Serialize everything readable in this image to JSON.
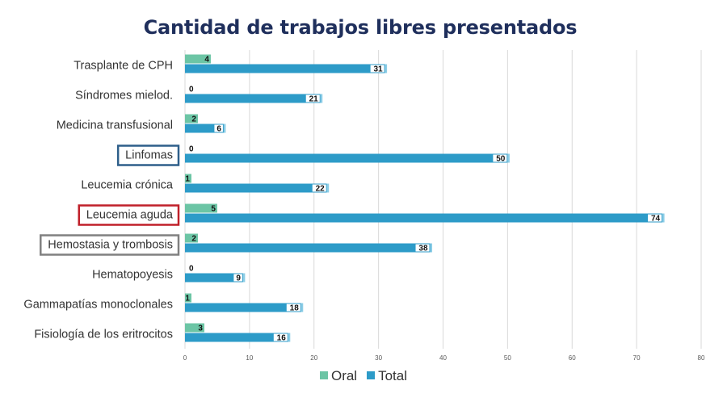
{
  "chart_data": {
    "type": "bar",
    "orientation": "horizontal",
    "title": "Cantidad de trabajos libres presentados",
    "categories": [
      "Trasplante de CPH",
      "Síndromes mielod.",
      "Medicina transfusional",
      "Linfomas",
      "Leucemia crónica",
      "Leucemia aguda",
      "Hemostasia y trombosis",
      "Hematopoyesis",
      "Gammapatías monoclonales",
      "Fisiología de los eritrocitos"
    ],
    "series": [
      {
        "name": "Oral",
        "color": "#6cc5a5",
        "values": [
          4,
          0,
          2,
          0,
          1,
          5,
          2,
          0,
          1,
          3
        ]
      },
      {
        "name": "Total",
        "color": "#2d9bc8",
        "values": [
          31,
          21,
          6,
          50,
          22,
          74,
          38,
          9,
          18,
          16
        ]
      }
    ],
    "xlim": [
      0,
      80
    ],
    "xticks": [
      "0",
      "10",
      "20",
      "30",
      "40",
      "50",
      "60",
      "70",
      "80"
    ],
    "grid": true,
    "legend_position": "bottom",
    "highlighted_categories": [
      {
        "category": "Linfomas",
        "color": "#2e5f8a"
      },
      {
        "category": "Leucemia aguda",
        "color": "#c0202a"
      },
      {
        "category": "Hemostasia y trombosis",
        "color": "#808080"
      }
    ]
  }
}
